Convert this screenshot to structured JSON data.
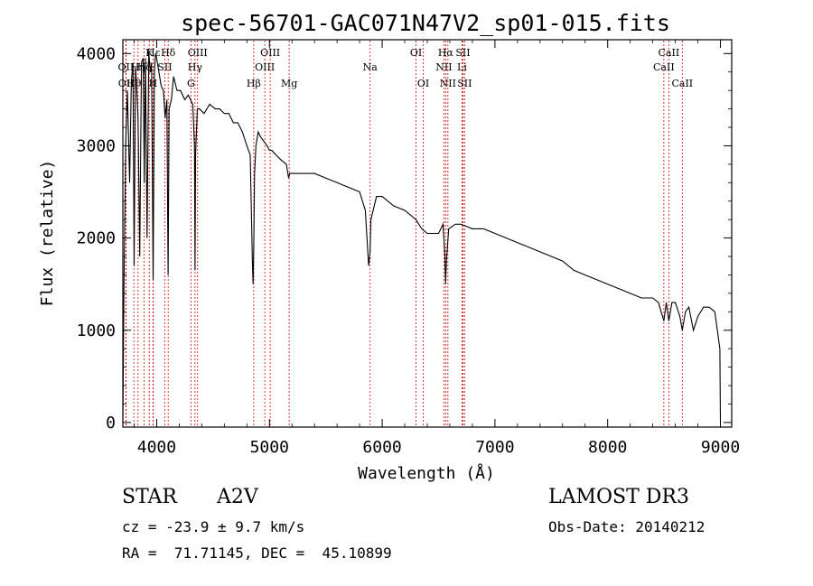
{
  "chart_data": {
    "type": "line",
    "title": "spec-56701-GAC071N47V2_sp01-015.fits",
    "xlabel": "Wavelength (Å)",
    "ylabel": "Flux (relative)",
    "xlim": [
      3700,
      9100
    ],
    "ylim": [
      -50,
      4150
    ],
    "x_ticks": [
      4000,
      5000,
      6000,
      7000,
      8000,
      9000
    ],
    "y_ticks": [
      0,
      1000,
      2000,
      3000,
      4000
    ],
    "series": [
      {
        "name": "spectrum",
        "x": [
          3700,
          3710,
          3725,
          3740,
          3760,
          3775,
          3790,
          3800,
          3812,
          3820,
          3835,
          3850,
          3865,
          3880,
          3890,
          3900,
          3915,
          3930,
          3945,
          3955,
          3968,
          3980,
          3990,
          4000,
          4020,
          4040,
          4060,
          4075,
          4090,
          4101,
          4110,
          4130,
          4150,
          4180,
          4210,
          4250,
          4280,
          4300,
          4320,
          4335,
          4340,
          4345,
          4360,
          4380,
          4420,
          4470,
          4520,
          4560,
          4600,
          4640,
          4680,
          4720,
          4760,
          4800,
          4830,
          4850,
          4855,
          4861,
          4868,
          4880,
          4900,
          4920,
          4950,
          4980,
          5000,
          5020,
          5060,
          5100,
          5150,
          5170,
          5180,
          5200,
          5260,
          5330,
          5400,
          5500,
          5600,
          5700,
          5800,
          5850,
          5880,
          5893,
          5900,
          5950,
          6000,
          6100,
          6200,
          6300,
          6350,
          6400,
          6500,
          6540,
          6556,
          6563,
          6570,
          6590,
          6650,
          6700,
          6800,
          6900,
          7000,
          7100,
          7200,
          7300,
          7400,
          7500,
          7600,
          7700,
          7800,
          7900,
          8000,
          8100,
          8200,
          8300,
          8400,
          8450,
          8498,
          8520,
          8542,
          8570,
          8600,
          8640,
          8662,
          8690,
          8720,
          8760,
          8800,
          8850,
          8900,
          8950,
          8995,
          9000
        ],
        "y": [
          0,
          1450,
          3000,
          3600,
          2600,
          3700,
          3900,
          1700,
          3850,
          3700,
          3300,
          1800,
          3900,
          3950,
          2600,
          3950,
          2000,
          4000,
          3800,
          3900,
          1550,
          3800,
          4000,
          3950,
          3800,
          3650,
          3600,
          3300,
          3500,
          1600,
          3400,
          3500,
          3750,
          3600,
          3600,
          3500,
          3550,
          3500,
          3450,
          3000,
          1650,
          2900,
          3400,
          3400,
          3350,
          3450,
          3400,
          3400,
          3350,
          3350,
          3250,
          3250,
          3150,
          3000,
          2900,
          1700,
          1500,
          1900,
          2700,
          3000,
          3150,
          3100,
          3050,
          3000,
          2950,
          2950,
          2900,
          2850,
          2800,
          2650,
          2700,
          2700,
          2700,
          2700,
          2700,
          2650,
          2600,
          2550,
          2500,
          2300,
          1700,
          1850,
          2200,
          2450,
          2450,
          2350,
          2300,
          2200,
          2100,
          2050,
          2050,
          2150,
          1800,
          1500,
          1750,
          2100,
          2150,
          2150,
          2100,
          2100,
          2050,
          2000,
          1950,
          1900,
          1850,
          1800,
          1750,
          1650,
          1600,
          1550,
          1500,
          1450,
          1400,
          1350,
          1350,
          1300,
          1100,
          1300,
          1100,
          1300,
          1300,
          1150,
          1000,
          1200,
          1250,
          1000,
          1150,
          1250,
          1250,
          1200,
          800,
          0
        ]
      }
    ],
    "lines": [
      {
        "label": "Hε",
        "x": 3970,
        "row": 1
      },
      {
        "label": "K",
        "x": 3934,
        "row": 1
      },
      {
        "label": "Hδ",
        "x": 4102,
        "row": 1
      },
      {
        "label": "OIII",
        "x": 4363,
        "row": 1
      },
      {
        "label": "OIII",
        "x": 5007,
        "row": 1
      },
      {
        "label": "OI",
        "x": 6300,
        "row": 1
      },
      {
        "label": "Hα",
        "x": 6563,
        "row": 1
      },
      {
        "label": "SII",
        "x": 6716,
        "row": 1
      },
      {
        "label": "CaII",
        "x": 8542,
        "row": 1
      },
      {
        "label": "OII",
        "x": 3727,
        "row": 2
      },
      {
        "label": "Hη",
        "x": 3835,
        "row": 2
      },
      {
        "label": "Hζ",
        "x": 3889,
        "row": 2
      },
      {
        "label": "SII",
        "x": 4072,
        "row": 2
      },
      {
        "label": "Hγ",
        "x": 4340,
        "row": 2
      },
      {
        "label": "OIII",
        "x": 4959,
        "row": 2
      },
      {
        "label": "Na",
        "x": 5893,
        "row": 2
      },
      {
        "label": "NII",
        "x": 6548,
        "row": 2
      },
      {
        "label": "Li",
        "x": 6708,
        "row": 2
      },
      {
        "label": "CaII",
        "x": 8498,
        "row": 2
      },
      {
        "label": "OII",
        "x": 3729,
        "row": 3
      },
      {
        "label": "Hθ",
        "x": 3798,
        "row": 3
      },
      {
        "label": "H",
        "x": 3968,
        "row": 3
      },
      {
        "label": "G",
        "x": 4304,
        "row": 3
      },
      {
        "label": "Hβ",
        "x": 4861,
        "row": 3
      },
      {
        "label": "Mg",
        "x": 5175,
        "row": 3
      },
      {
        "label": "OI",
        "x": 6364,
        "row": 3
      },
      {
        "label": "NII",
        "x": 6583,
        "row": 3
      },
      {
        "label": "SII",
        "x": 6731,
        "row": 3
      },
      {
        "label": "CaII",
        "x": 8662,
        "row": 3
      }
    ],
    "grid": false,
    "legend": "none"
  },
  "info": {
    "obj_class": "STAR",
    "subclass": "A2V",
    "redshift": "cz = -23.9 ± 9.7 km/s",
    "coords": "RA =  71.71145, DEC =  45.10899",
    "survey": "LAMOST DR3",
    "obs_date": "Obs-Date: 20140212"
  }
}
